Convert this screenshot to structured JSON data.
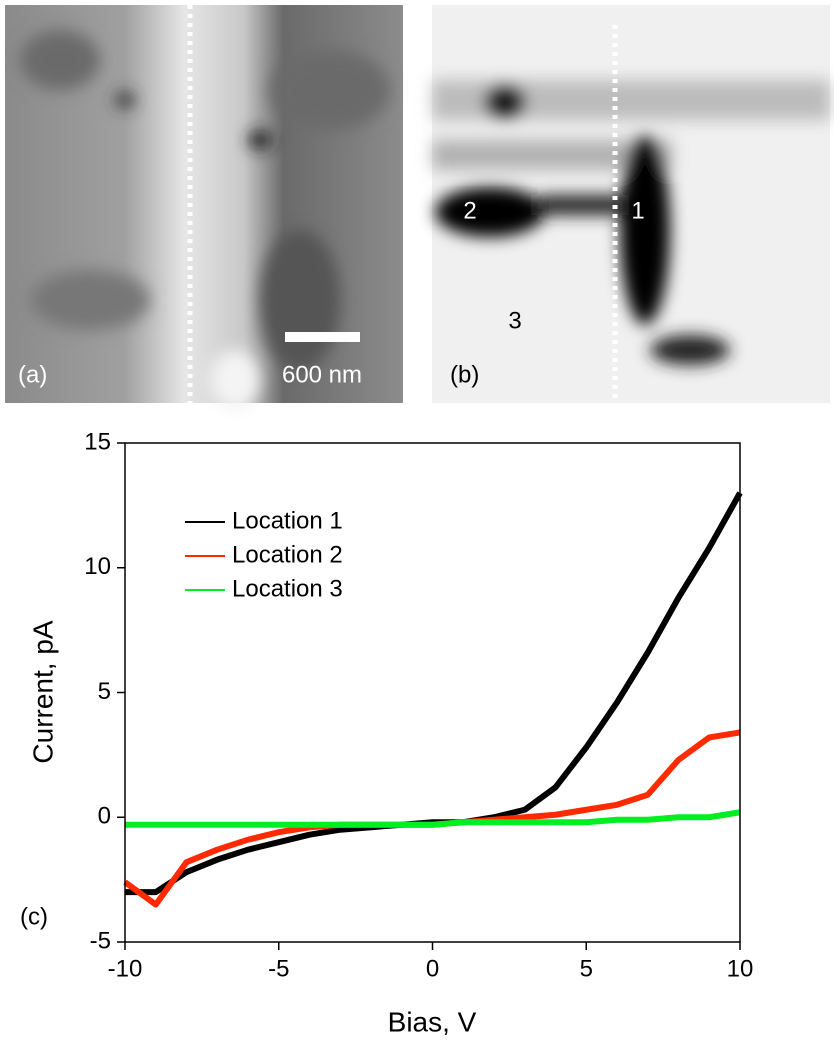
{
  "panels": {
    "a": {
      "label": "(a)",
      "scale_bar": "600 nm"
    },
    "b": {
      "label": "(b)",
      "markers": [
        "1",
        "2",
        "3"
      ]
    }
  },
  "chart_data": {
    "type": "line",
    "panel_label": "(c)",
    "xlabel": "Bias, V",
    "ylabel": "Current, pA",
    "x": [
      -10,
      -9,
      -8,
      -7,
      -6,
      -5,
      -4,
      -3,
      -2,
      -1,
      0,
      1,
      2,
      3,
      4,
      5,
      6,
      7,
      8,
      9,
      10
    ],
    "series": [
      {
        "name": "Location 1",
        "color": "#000000",
        "values": [
          -3,
          -3,
          -2.2,
          -1.7,
          -1.3,
          -1,
          -0.7,
          -0.5,
          -0.4,
          -0.3,
          -0.2,
          -0.2,
          0,
          0.3,
          1.2,
          2.8,
          4.6,
          6.6,
          8.8,
          10.8,
          13
        ]
      },
      {
        "name": "Location 2",
        "color": "#ff2a00",
        "values": [
          -2.6,
          -3.5,
          -1.8,
          -1.3,
          -0.9,
          -0.6,
          -0.4,
          -0.3,
          -0.3,
          -0.3,
          -0.3,
          -0.2,
          -0.1,
          0,
          0.1,
          0.3,
          0.5,
          0.9,
          2.3,
          3.2,
          3.4
        ]
      },
      {
        "name": "Location 3",
        "color": "#00ee22",
        "values": [
          -0.3,
          -0.3,
          -0.3,
          -0.3,
          -0.3,
          -0.3,
          -0.3,
          -0.3,
          -0.3,
          -0.3,
          -0.3,
          -0.2,
          -0.2,
          -0.2,
          -0.2,
          -0.2,
          -0.1,
          -0.1,
          0,
          0,
          0.2
        ]
      }
    ],
    "xlim": [
      -10,
      10
    ],
    "ylim": [
      -5,
      15
    ],
    "xticks": [
      -10,
      -5,
      0,
      5,
      10
    ],
    "yticks": [
      -5,
      0,
      5,
      10,
      15
    ]
  }
}
